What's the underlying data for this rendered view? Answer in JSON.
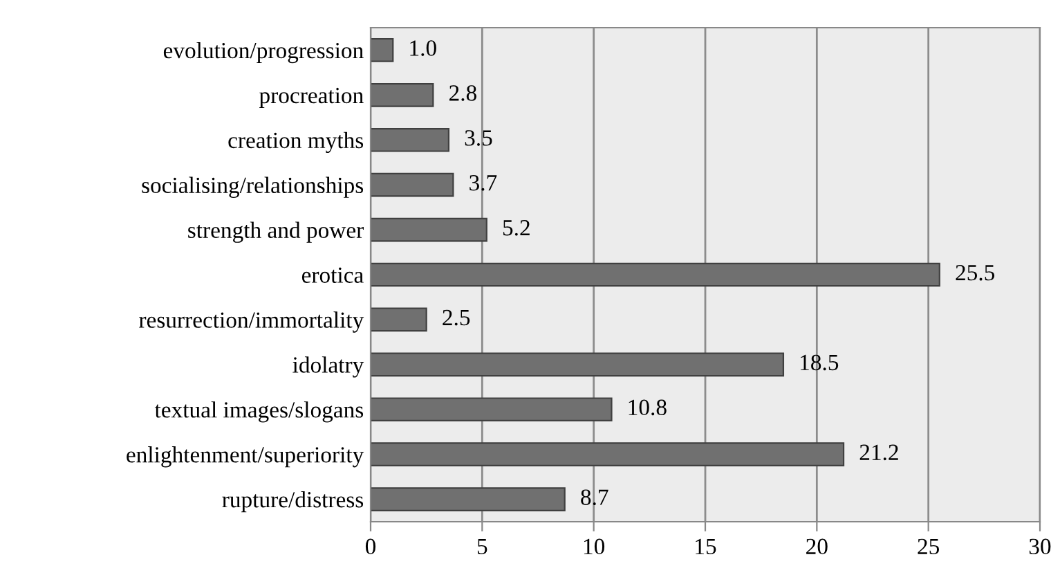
{
  "chart_data": {
    "type": "bar",
    "orientation": "horizontal",
    "categories": [
      "evolution/progression",
      "procreation",
      "creation myths",
      "socialising/relationships",
      "strength and power",
      "erotica",
      "resurrection/immortality",
      "idolatry",
      "textual images/slogans",
      "enlightenment/superiority",
      "rupture/distress"
    ],
    "values": [
      1.0,
      2.8,
      3.5,
      3.7,
      5.2,
      25.5,
      2.5,
      18.5,
      10.8,
      21.2,
      8.7
    ],
    "value_labels": [
      "1.0",
      "2.8",
      "3.5",
      "3.7",
      "5.2",
      "25.5",
      "2.5",
      "18.5",
      "10.8",
      "21.2",
      "8.7"
    ],
    "color": "#707070",
    "xlim": [
      0,
      30
    ],
    "xticks": [
      0,
      5,
      10,
      15,
      20,
      25,
      30
    ],
    "grid": "x",
    "legend": false
  }
}
